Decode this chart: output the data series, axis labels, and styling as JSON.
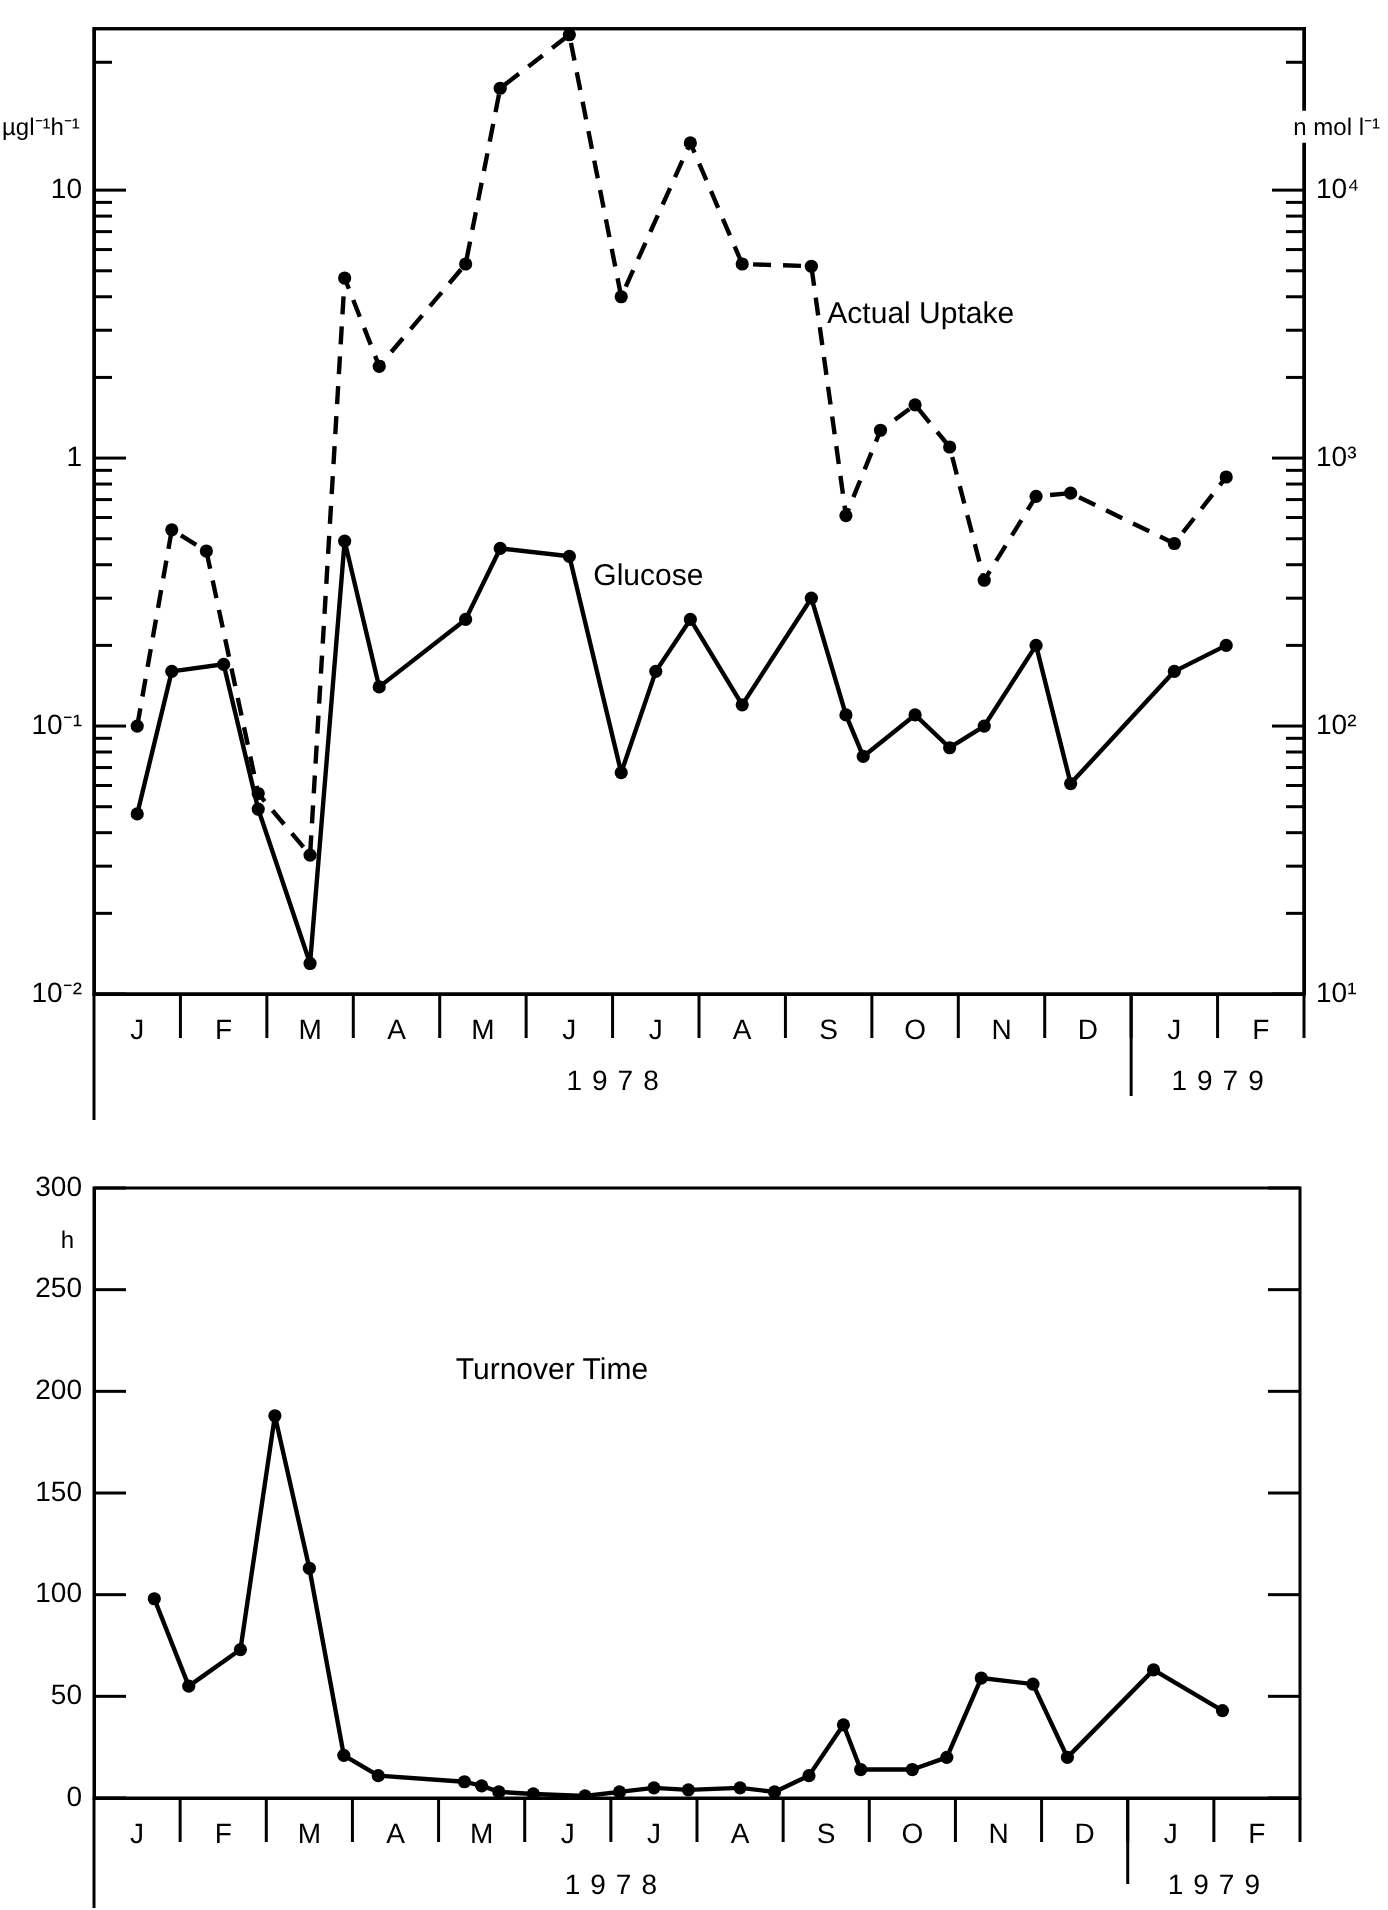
{
  "chart_data": [
    {
      "type": "line",
      "ylabel": "µgl⁻¹h⁻¹",
      "log": true,
      "grid": false,
      "legend": false,
      "marker": "circle",
      "categories": [
        null,
        null,
        "J",
        null,
        null,
        null,
        null,
        "F",
        null,
        null,
        null,
        null,
        "M",
        null,
        null,
        null,
        null,
        "A",
        null,
        null,
        null,
        null,
        "M",
        null,
        null,
        null,
        null,
        "J",
        null,
        null,
        null,
        null,
        "J",
        null,
        null,
        null,
        null,
        "A",
        null,
        null,
        null,
        null,
        "S",
        null,
        null,
        null,
        null,
        "O",
        null,
        null,
        null,
        null,
        "N",
        null,
        null,
        null,
        null,
        "D",
        null,
        null,
        null,
        null,
        "J",
        null,
        null,
        null,
        null,
        "F",
        null,
        null
      ],
      "ylim": [
        0.01,
        40
      ],
      "yticks": [
        {
          "value": 0.01,
          "label": "10⁻²"
        },
        {
          "value": 0.02,
          "label": null
        },
        {
          "value": 0.03,
          "label": null
        },
        {
          "value": 0.04,
          "label": null
        },
        {
          "value": 0.05,
          "label": null
        },
        {
          "value": 0.06,
          "label": null
        },
        {
          "value": 0.07,
          "label": null
        },
        {
          "value": 0.08,
          "label": null
        },
        {
          "value": 0.09,
          "label": null
        },
        {
          "value": 0.1,
          "label": "10⁻¹"
        },
        {
          "value": 0.2,
          "label": null
        },
        {
          "value": 0.3,
          "label": null
        },
        {
          "value": 0.4,
          "label": null
        },
        {
          "value": 0.5,
          "label": null
        },
        {
          "value": 0.6,
          "label": null
        },
        {
          "value": 0.7,
          "label": null
        },
        {
          "value": 0.8,
          "label": null
        },
        {
          "value": 0.9,
          "label": null
        },
        1,
        {
          "value": 2,
          "label": null
        },
        {
          "value": 3,
          "label": null
        },
        {
          "value": 4,
          "label": null
        },
        {
          "value": 5,
          "label": null
        },
        {
          "value": 6,
          "label": null
        },
        {
          "value": 7,
          "label": null
        },
        {
          "value": 8,
          "label": null
        },
        {
          "value": 9,
          "label": null
        },
        10,
        {
          "value": 30,
          "label": null
        }
      ],
      "annotations": [
        "1978",
        "1979"
      ],
      "series": [
        {
          "name": "Actual Uptake",
          "color": "#000000",
          "line_style": "dashed",
          "values": [
            null,
            null,
            0.1,
            null,
            0.54,
            null,
            0.45,
            null,
            null,
            0.056,
            null,
            null,
            0.033,
            null,
            4.7,
            null,
            2.2,
            null,
            null,
            null,
            null,
            5.3,
            null,
            24,
            null,
            null,
            null,
            38,
            null,
            null,
            4,
            null,
            null,
            null,
            15,
            null,
            null,
            5.3,
            null,
            null,
            null,
            5.2,
            null,
            0.61,
            null,
            1.27,
            null,
            1.58,
            null,
            1.1,
            null,
            0.35,
            null,
            null,
            0.72,
            null,
            0.74,
            null,
            null,
            null,
            null,
            null,
            0.48,
            null,
            null,
            0.85,
            null,
            null,
            null,
            null
          ]
        }
      ]
    },
    {
      "type": "line",
      "ylabel": "n mol l⁻¹",
      "log": true,
      "grid": false,
      "legend": false,
      "marker": "circle",
      "tick_labels": "y",
      "categories": [
        null,
        null,
        null,
        null,
        null,
        null,
        null,
        null,
        null,
        null,
        null,
        null,
        null,
        null,
        null,
        null,
        null,
        null,
        null,
        null,
        null,
        null,
        null,
        null,
        null,
        null,
        null,
        null,
        null,
        null,
        null,
        null,
        null,
        null,
        null,
        null,
        null,
        null,
        null,
        null,
        null,
        null,
        null,
        null,
        null,
        null,
        null,
        null,
        null,
        null,
        null,
        null,
        null,
        null,
        null,
        null,
        null,
        null,
        null,
        null,
        null,
        null,
        null,
        null,
        null,
        null,
        null,
        null,
        null,
        null
      ],
      "ylim": [
        10,
        40000
      ],
      "yticks": [
        {
          "value": 10,
          "label": "10¹"
        },
        {
          "value": 20,
          "label": null
        },
        {
          "value": 30,
          "label": null
        },
        {
          "value": 40,
          "label": null
        },
        {
          "value": 50,
          "label": null
        },
        {
          "value": 60,
          "label": null
        },
        {
          "value": 70,
          "label": null
        },
        {
          "value": 80,
          "label": null
        },
        {
          "value": 90,
          "label": null
        },
        {
          "value": 100,
          "label": "10²"
        },
        {
          "value": 200,
          "label": null
        },
        {
          "value": 300,
          "label": null
        },
        {
          "value": 400,
          "label": null
        },
        {
          "value": 500,
          "label": null
        },
        {
          "value": 600,
          "label": null
        },
        {
          "value": 700,
          "label": null
        },
        {
          "value": 800,
          "label": null
        },
        {
          "value": 900,
          "label": null
        },
        {
          "value": 1000,
          "label": "10³"
        },
        {
          "value": 2000,
          "label": null
        },
        {
          "value": 3000,
          "label": null
        },
        {
          "value": 4000,
          "label": null
        },
        {
          "value": 5000,
          "label": null
        },
        {
          "value": 6000,
          "label": null
        },
        {
          "value": 7000,
          "label": null
        },
        {
          "value": 8000,
          "label": null
        },
        {
          "value": 9000,
          "label": null
        },
        {
          "value": 10000,
          "label": "10⁴"
        },
        {
          "value": 30000,
          "label": null
        }
      ],
      "series": [
        {
          "name": "Glucose",
          "color": "#000000",
          "line_style": "solid",
          "values": [
            null,
            null,
            47,
            null,
            160,
            null,
            null,
            170,
            null,
            49,
            null,
            null,
            13,
            null,
            490,
            null,
            140,
            null,
            null,
            null,
            null,
            250,
            null,
            460,
            null,
            null,
            null,
            430,
            null,
            null,
            67,
            null,
            160,
            null,
            250,
            null,
            null,
            120,
            null,
            null,
            null,
            300,
            null,
            110,
            77,
            null,
            null,
            110,
            null,
            83,
            null,
            100,
            null,
            null,
            200,
            null,
            61,
            null,
            null,
            null,
            null,
            null,
            160,
            null,
            null,
            200,
            null,
            null,
            null,
            null
          ]
        }
      ]
    },
    {
      "type": "line",
      "ylabel": "h",
      "grid": false,
      "legend": false,
      "marker": "circle",
      "categories": [
        null,
        null,
        "J",
        null,
        null,
        null,
        null,
        "F",
        null,
        null,
        null,
        null,
        "M",
        null,
        null,
        null,
        null,
        "A",
        null,
        null,
        null,
        null,
        "M",
        null,
        null,
        null,
        null,
        "J",
        null,
        null,
        null,
        null,
        "J",
        null,
        null,
        null,
        null,
        "A",
        null,
        null,
        null,
        null,
        "S",
        null,
        null,
        null,
        null,
        "O",
        null,
        null,
        null,
        null,
        "N",
        null,
        null,
        null,
        null,
        "D",
        null,
        null,
        null,
        null,
        "J",
        null,
        null,
        null,
        null,
        "F",
        null,
        null
      ],
      "ylim": [
        0,
        300
      ],
      "yticks": [
        0,
        50,
        100,
        150,
        200,
        250,
        300
      ],
      "annotations": [
        "1978",
        "1979"
      ],
      "series": [
        {
          "name": "Turnover Time",
          "color": "#000000",
          "line_style": "solid",
          "values": [
            null,
            null,
            null,
            98,
            null,
            55,
            null,
            null,
            73,
            null,
            188,
            null,
            113,
            null,
            21,
            null,
            11,
            null,
            null,
            null,
            null,
            8,
            6,
            3,
            null,
            2,
            null,
            null,
            1,
            null,
            3,
            null,
            5,
            null,
            4,
            null,
            null,
            5,
            null,
            3,
            null,
            11,
            null,
            36,
            14,
            null,
            null,
            14,
            null,
            20,
            null,
            59,
            null,
            null,
            56,
            null,
            20,
            null,
            null,
            null,
            null,
            63,
            null,
            null,
            null,
            43,
            null,
            null,
            null,
            null
          ]
        }
      ]
    }
  ]
}
